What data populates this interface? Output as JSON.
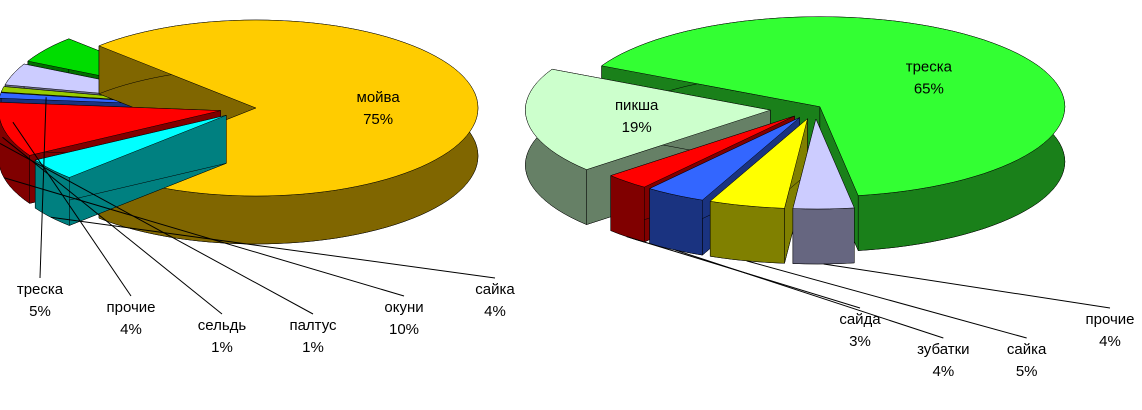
{
  "chart_data": [
    {
      "type": "pie",
      "categories": [
        "мойва",
        "сайка",
        "окуни",
        "палтус",
        "сельдь",
        "прочие",
        "треска"
      ],
      "values": [
        75,
        4,
        10,
        1,
        1,
        4,
        5
      ],
      "value_labels": [
        "75%",
        "4%",
        "10%",
        "1%",
        "1%",
        "4%",
        "5%"
      ],
      "colors": [
        "#ffcc00",
        "#00ffff",
        "#ff0000",
        "#3366ff",
        "#99cc00",
        "#ccccff",
        "#00dd00"
      ]
    },
    {
      "type": "pie",
      "categories": [
        "треска",
        "прочие",
        "сайка",
        "зубатки",
        "сайда",
        "пикша"
      ],
      "values": [
        65,
        4,
        5,
        4,
        3,
        19
      ],
      "value_labels": [
        "65%",
        "4%",
        "5%",
        "4%",
        "3%",
        "19%"
      ],
      "colors": [
        "#33ff33",
        "#ccccff",
        "#ffff00",
        "#3366ff",
        "#ff0000",
        "#ccffcc"
      ]
    }
  ]
}
